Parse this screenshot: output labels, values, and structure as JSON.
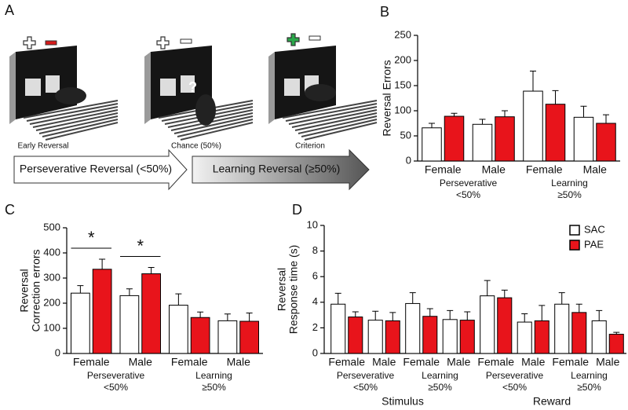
{
  "panel_a": {
    "label": "A",
    "stages": [
      "Early Reversal",
      "Chance (50%)",
      "Criterion"
    ],
    "question": "?",
    "arrows": [
      "Perseverative Reversal (<50%)",
      "Learning Reversal (≥50%)"
    ]
  },
  "chart_data": [
    {
      "type": "bar",
      "panel": "B",
      "ylabel": [
        "Reversal Errors"
      ],
      "categories": [
        "Female",
        "Male",
        "Female",
        "Male"
      ],
      "groups": [
        [
          "Perseverative",
          "<50%"
        ],
        [
          "Learning",
          "≥50%"
        ]
      ],
      "series": [
        {
          "color": "#ffffff",
          "values": [
            66,
            73,
            139,
            87
          ],
          "errors": [
            9,
            10,
            40,
            22
          ]
        },
        {
          "color": "#e8141b",
          "values": [
            89,
            88,
            113,
            75
          ],
          "errors": [
            6,
            12,
            27,
            17
          ]
        }
      ],
      "ylim": [
        0,
        250
      ],
      "yticks": [
        0,
        50,
        100,
        150,
        200,
        250
      ]
    },
    {
      "type": "bar",
      "panel": "C",
      "ylabel": [
        "Reversal",
        "Correction errors"
      ],
      "categories": [
        "Female",
        "Male",
        "Female",
        "Male"
      ],
      "groups": [
        [
          "Perseverative",
          "<50%"
        ],
        [
          "Learning",
          "≥50%"
        ]
      ],
      "series": [
        {
          "color": "#ffffff",
          "values": [
            240,
            230,
            192,
            130
          ],
          "errors": [
            30,
            27,
            45,
            27
          ]
        },
        {
          "color": "#e8141b",
          "values": [
            335,
            317,
            143,
            128
          ],
          "errors": [
            40,
            25,
            22,
            33
          ]
        }
      ],
      "annotations": [
        {
          "text": "*",
          "category": 0
        },
        {
          "text": "*",
          "category": 1
        }
      ],
      "ylim": [
        0,
        500
      ],
      "yticks": [
        0,
        100,
        200,
        300,
        400,
        500
      ]
    },
    {
      "type": "bar",
      "panel": "D",
      "ylabel": [
        "Reversal",
        "Response time (s)"
      ],
      "categories": [
        "Female",
        "Male",
        "Female",
        "Male",
        "Female",
        "Male",
        "Female",
        "Male"
      ],
      "groups": [
        [
          "Perseverative",
          "<50%"
        ],
        [
          "Learning",
          "≥50%"
        ],
        [
          "Perseverative",
          "<50%"
        ],
        [
          "Learning",
          "≥50%"
        ]
      ],
      "supergroups": [
        "Stimulus",
        "Reward"
      ],
      "series": [
        {
          "name": "SAC",
          "color": "#ffffff",
          "values": [
            3.85,
            2.6,
            3.9,
            2.65,
            4.5,
            2.45,
            3.85,
            2.55
          ],
          "errors": [
            0.85,
            0.7,
            0.85,
            0.7,
            1.2,
            0.65,
            0.9,
            0.8
          ]
        },
        {
          "name": "PAE",
          "color": "#e8141b",
          "values": [
            2.85,
            2.55,
            2.9,
            2.6,
            4.35,
            2.55,
            3.2,
            1.5
          ],
          "errors": [
            0.4,
            0.65,
            0.6,
            0.65,
            0.6,
            1.2,
            0.65,
            0.15
          ]
        }
      ],
      "legend": "upper right",
      "ylim": [
        0,
        10
      ],
      "yticks": [
        0,
        2,
        4,
        6,
        8,
        10
      ]
    }
  ]
}
